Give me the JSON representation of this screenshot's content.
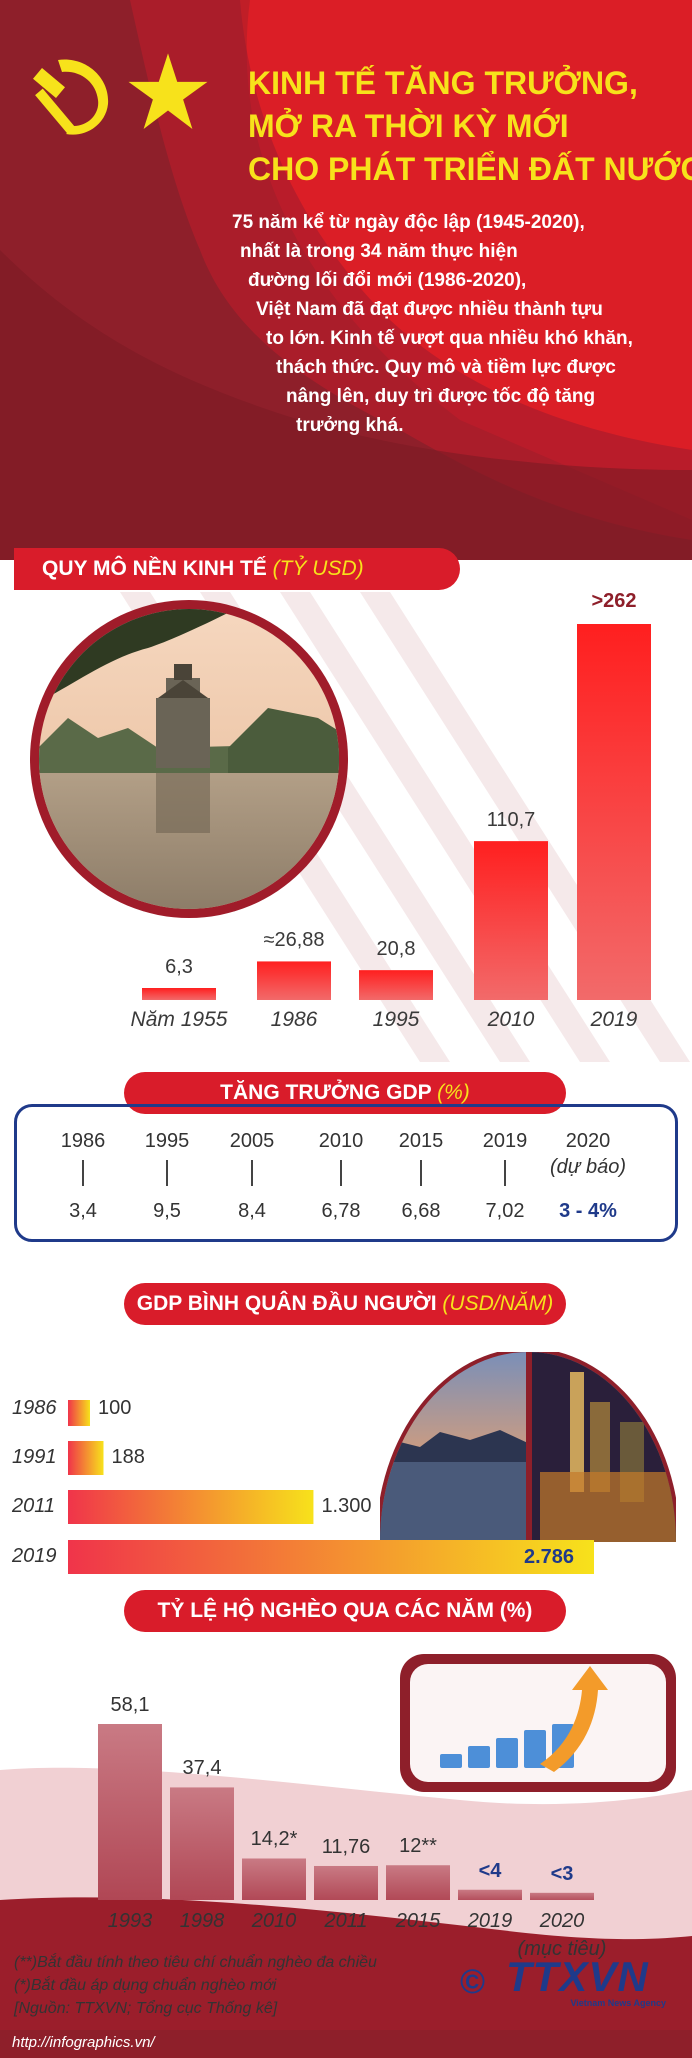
{
  "colors": {
    "red": "#d91c2a",
    "dark_red": "#8e1f2a",
    "yellow": "#f7e21b",
    "navy": "#1f3a8a"
  },
  "header": {
    "title_lines": [
      "KINH TẾ TĂNG TRƯỞNG,",
      "MỞ RA THỜI KỲ MỚI",
      "CHO PHÁT TRIỂN ĐẤT NƯỚC"
    ],
    "intro_lines": [
      "75 năm kể từ ngày độc lập (1945-2020),",
      "nhất là trong 34 năm thực hiện",
      "đường lối đổi mới (1986-2020),",
      "Việt Nam đã đạt được nhiều thành tựu",
      "to lớn. Kinh tế vượt qua nhiều khó khăn,",
      "thách thức. Quy mô và tiềm lực được",
      "nâng lên, duy trì được tốc độ tăng",
      "trưởng khá."
    ],
    "icons": [
      "hammer-sickle-icon",
      "star-icon"
    ]
  },
  "economy_section": {
    "title": "QUY MÔ NỀN KINH TẾ",
    "unit": "(TỶ USD)"
  },
  "growth_section": {
    "title": "TĂNG TRƯỞNG GDP",
    "unit": "(%)"
  },
  "per_capita_section": {
    "title": "GDP BÌNH QUÂN ĐẦU NGƯỜI",
    "unit": "(USD/NĂM)"
  },
  "poverty_section": {
    "title": "TỶ LỆ HỘ NGHÈO QUA CÁC NĂM (%)"
  },
  "chart_data": [
    {
      "type": "bar",
      "title": "QUY MÔ NỀN KINH TẾ (TỶ USD)",
      "categories": [
        "Năm 1955",
        "1986",
        "1995",
        "2010",
        "2019"
      ],
      "values": [
        6.3,
        26.88,
        20.8,
        110.7,
        262
      ],
      "value_labels": [
        "6,3",
        "≈26,88",
        "20,8",
        "110,7",
        ">262"
      ]
    },
    {
      "type": "table",
      "title": "TĂNG TRƯỞNG GDP (%)",
      "years": [
        "1986",
        "1995",
        "2005",
        "2010",
        "2015",
        "2019",
        "2020"
      ],
      "year_notes": [
        "",
        "",
        "",
        "",
        "",
        "",
        "(dự báo)"
      ],
      "values": [
        "3,4",
        "9,5",
        "8,4",
        "6,78",
        "6,68",
        "7,02",
        "3 - 4%"
      ]
    },
    {
      "type": "bar",
      "orientation": "horizontal",
      "title": "GDP BÌNH QUÂN ĐẦU NGƯỜI (USD/NĂM)",
      "categories": [
        "1986",
        "1991",
        "2011",
        "2019"
      ],
      "values": [
        100,
        188,
        1300,
        2786
      ],
      "value_labels": [
        "100",
        "188",
        "1.300",
        "2.786"
      ]
    },
    {
      "type": "bar",
      "title": "TỶ LỆ HỘ NGHÈO QUA CÁC NĂM (%)",
      "categories": [
        "1993",
        "1998",
        "2010",
        "2011",
        "2015",
        "2019",
        "2020"
      ],
      "category_notes": [
        "",
        "",
        "",
        "",
        "",
        "",
        "(mục tiêu)"
      ],
      "values": [
        58.1,
        37.4,
        14.2,
        11.76,
        12,
        4,
        3
      ],
      "value_labels": [
        "58,1",
        "37,4",
        "14,2*",
        "11,76",
        "12**",
        "<4",
        "<3"
      ]
    }
  ],
  "footer": {
    "notes": [
      "(**)Bắt đầu tính theo tiêu chí chuẩn nghèo đa chiều",
      "(*)Bắt đầu áp dụng chuẩn nghèo mới",
      "[Nguồn: TTXVN; Tổng cục Thống kê]"
    ],
    "url": "http://infographics.vn/",
    "logo_text": "TTXVN",
    "logo_sub": "Vietnam News Agency",
    "copyright": "©"
  }
}
